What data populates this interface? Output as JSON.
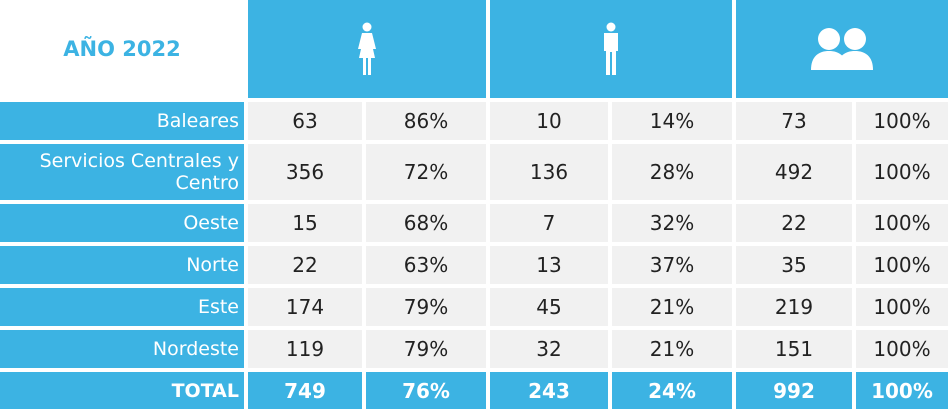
{
  "header": {
    "title": "AÑO 2022"
  },
  "table": {
    "rows": [
      {
        "label": "Baleares",
        "cells": [
          "63",
          "86%",
          "10",
          "14%",
          "73",
          "100%"
        ]
      },
      {
        "label": "Servicios Centrales y Centro",
        "cells": [
          "356",
          "72%",
          "136",
          "28%",
          "492",
          "100%"
        ]
      },
      {
        "label": "Oeste",
        "cells": [
          "15",
          "68%",
          "7",
          "32%",
          "22",
          "100%"
        ]
      },
      {
        "label": "Norte",
        "cells": [
          "22",
          "63%",
          "13",
          "37%",
          "35",
          "100%"
        ]
      },
      {
        "label": "Este",
        "cells": [
          "174",
          "79%",
          "45",
          "21%",
          "219",
          "100%"
        ]
      },
      {
        "label": "Nordeste",
        "cells": [
          "119",
          "79%",
          "32",
          "21%",
          "151",
          "100%"
        ]
      }
    ],
    "total": {
      "label": "TOTAL",
      "cells": [
        "749",
        "76%",
        "243",
        "24%",
        "992",
        "100%"
      ]
    }
  }
}
